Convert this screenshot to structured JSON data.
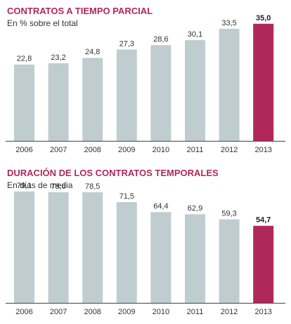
{
  "chart_data": [
    {
      "type": "bar",
      "title": "CONTRATOS A TIEMPO PARCIAL",
      "subtitle": "En % sobre el total",
      "categories": [
        "2006",
        "2007",
        "2008",
        "2009",
        "2010",
        "2011",
        "2012",
        "2013"
      ],
      "values": [
        22.8,
        23.2,
        24.8,
        27.3,
        28.6,
        30.1,
        33.5,
        35.0
      ],
      "value_labels": [
        "22,8",
        "23,2",
        "24,8",
        "27,3",
        "28,6",
        "30,1",
        "33,5",
        "35,0"
      ],
      "highlight_index": 7,
      "ylim": [
        0,
        40
      ],
      "grid": false,
      "colors": {
        "bar": "#bfcdd1",
        "highlight": "#b0285a",
        "baseline": "#444444"
      }
    },
    {
      "type": "bar",
      "title": "DURACIÓN DE LOS CONTRATOS TEMPORALES",
      "subtitle": "En días de media",
      "categories": [
        "2006",
        "2007",
        "2008",
        "2009",
        "2010",
        "2011",
        "2012",
        "2013"
      ],
      "values": [
        79.1,
        78.6,
        78.5,
        71.5,
        64.4,
        62.9,
        59.3,
        54.7
      ],
      "value_labels": [
        "79,1",
        "78,6",
        "78,5",
        "71,5",
        "64,4",
        "62,9",
        "59,3",
        "54,7"
      ],
      "highlight_index": 7,
      "ylim": [
        0,
        90
      ],
      "grid": false,
      "colors": {
        "bar": "#bfcdd1",
        "highlight": "#b0285a",
        "baseline": "#444444"
      }
    }
  ]
}
